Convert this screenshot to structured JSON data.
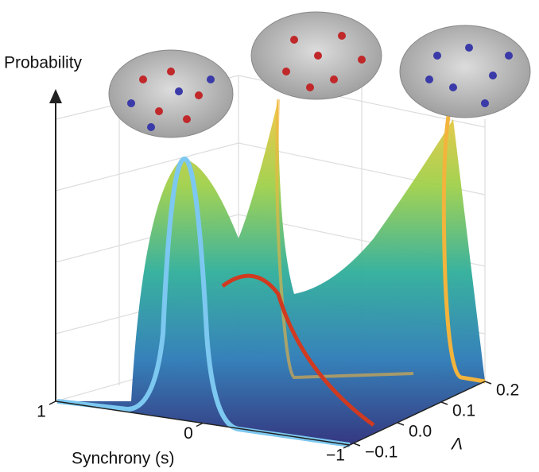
{
  "chart_data": {
    "type": "surface3d",
    "zlabel": "Probability",
    "xlabel": "Synchrony (s)",
    "ylabel": "Λ",
    "xlim": [
      -1,
      1
    ],
    "xticks": [
      {
        "value": -1,
        "label": "−1"
      },
      0,
      1
    ],
    "ylim": [
      -0.1,
      0.2
    ],
    "yticks": [
      {
        "value": -0.1,
        "label": "−0.1"
      },
      {
        "value": 0,
        "label": "0.0"
      },
      0.1,
      0.2
    ]
  }
}
